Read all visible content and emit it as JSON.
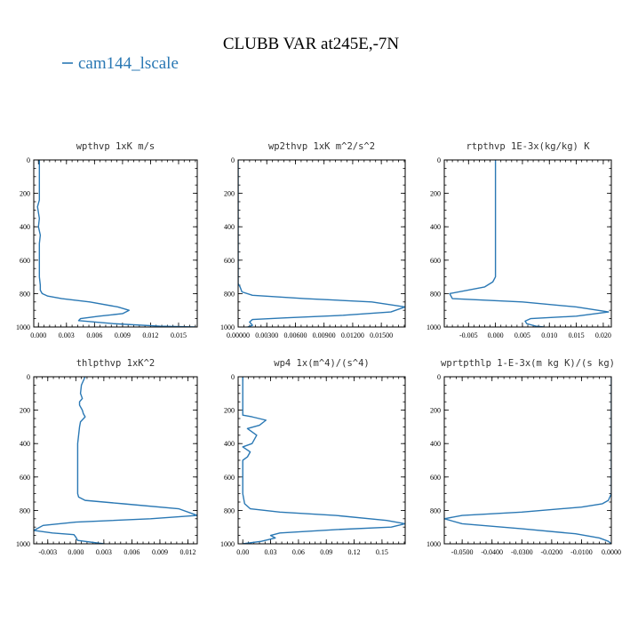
{
  "figure": {
    "title": "CLUBB VAR at245E,-7N",
    "legend": [
      {
        "label": "cam144_lscale",
        "color": "#2a78b4"
      }
    ]
  },
  "chart_data": [
    {
      "type": "line",
      "title": "wpthvp   1xK m/s",
      "series_name": "cam144_lscale",
      "color": "#2a78b4",
      "xlim": [
        -0.0005,
        0.017
      ],
      "ylim": [
        1000,
        0
      ],
      "xticks": [
        0.0,
        0.003,
        0.006,
        0.009,
        0.012,
        0.015
      ],
      "xtick_labels": [
        "0.000",
        "0.003",
        "0.006",
        "0.009",
        "0.012",
        "0.015"
      ],
      "yticks": [
        0,
        200,
        400,
        600,
        800,
        1000
      ],
      "ytick_labels": [
        "0",
        "200",
        "400",
        "600",
        "800",
        "1000"
      ],
      "x": [
        0.0001,
        0.0001,
        0.0001,
        0.0001,
        0.0,
        -0.0001,
        0.0001,
        0.0,
        0.0002,
        0.0001,
        0.0001,
        0.0001,
        0.0002,
        0.0002,
        0.0004,
        0.001,
        0.0025,
        0.0055,
        0.0085,
        0.0097,
        0.009,
        0.0065,
        0.0045,
        0.0043,
        0.008,
        0.013,
        0.0168
      ],
      "y": [
        0,
        100,
        200,
        240,
        260,
        280,
        350,
        400,
        450,
        500,
        600,
        700,
        750,
        780,
        800,
        815,
        830,
        850,
        880,
        900,
        920,
        935,
        950,
        962,
        980,
        995,
        1000
      ]
    },
    {
      "type": "line",
      "title": "wp2thvp   1xK m^2/s^2",
      "series_name": "cam144_lscale",
      "color": "#2a78b4",
      "xlim": [
        0.0,
        0.0175
      ],
      "ylim": [
        1000,
        0
      ],
      "xticks": [
        0.0,
        0.003,
        0.006,
        0.009,
        0.012,
        0.015
      ],
      "xtick_labels": [
        "0.00000",
        "0.00300",
        "0.00600",
        "0.00900",
        "0.01200",
        "0.01500"
      ],
      "yticks": [
        0,
        200,
        400,
        600,
        800,
        1000
      ],
      "ytick_labels": [
        "0",
        "200",
        "400",
        "600",
        "800",
        "1000"
      ],
      "x": [
        0.0,
        0.0,
        0.0,
        0.0,
        0.0,
        0.0,
        0.0002,
        0.0004,
        0.0015,
        0.007,
        0.014,
        0.0175,
        0.016,
        0.011,
        0.005,
        0.0015,
        0.0012,
        0.0015,
        0.001
      ],
      "y": [
        0,
        200,
        400,
        600,
        700,
        740,
        760,
        790,
        810,
        830,
        850,
        880,
        910,
        930,
        945,
        955,
        970,
        990,
        1000
      ]
    },
    {
      "type": "line",
      "title": "rtpthvp   1E-3x(kg/kg) K",
      "series_name": "cam144_lscale",
      "color": "#2a78b4",
      "xlim": [
        -0.0095,
        0.0215
      ],
      "ylim": [
        1000,
        0
      ],
      "xticks": [
        -0.005,
        0.0,
        0.005,
        0.01,
        0.015,
        0.02
      ],
      "xtick_labels": [
        "-0.005",
        "0.000",
        "0.005",
        "0.010",
        "0.015",
        "0.020"
      ],
      "yticks": [
        0,
        200,
        400,
        600,
        800,
        1000
      ],
      "ytick_labels": [
        "0",
        "200",
        "400",
        "600",
        "800",
        "1000"
      ],
      "x": [
        0.0,
        0.0,
        0.0,
        0.0,
        0.0,
        -0.0005,
        -0.002,
        -0.0085,
        -0.008,
        0.005,
        0.015,
        0.021,
        0.015,
        0.0065,
        0.0055,
        0.0058,
        0.0075,
        0.009
      ],
      "y": [
        0,
        200,
        400,
        600,
        700,
        730,
        760,
        800,
        830,
        850,
        880,
        910,
        935,
        950,
        965,
        980,
        995,
        1000
      ]
    },
    {
      "type": "line",
      "title": "thlpthvp   1xK^2",
      "series_name": "cam144_lscale",
      "color": "#2a78b4",
      "xlim": [
        -0.0045,
        0.013
      ],
      "ylim": [
        1000,
        0
      ],
      "xticks": [
        -0.003,
        0.0,
        0.003,
        0.006,
        0.009,
        0.012
      ],
      "xtick_labels": [
        "-0.003",
        "0.000",
        "0.003",
        "0.006",
        "0.009",
        "0.012"
      ],
      "yticks": [
        0,
        200,
        400,
        600,
        800,
        1000
      ],
      "ytick_labels": [
        "0",
        "200",
        "400",
        "600",
        "800",
        "1000"
      ],
      "x": [
        0.001,
        0.0006,
        0.0005,
        0.0007,
        0.0004,
        0.0004,
        0.0007,
        0.0008,
        0.001,
        0.0005,
        0.0004,
        0.0003,
        0.0002,
        0.0002,
        0.0002,
        0.0002,
        0.0003,
        0.001,
        0.005,
        0.011,
        0.013,
        0.008,
        0.0,
        -0.0035,
        -0.0045,
        -0.0025,
        -0.0002,
        0.0,
        0.0002,
        0.003
      ],
      "y": [
        0,
        50,
        100,
        130,
        150,
        170,
        200,
        220,
        240,
        270,
        300,
        350,
        400,
        500,
        600,
        700,
        720,
        740,
        760,
        790,
        830,
        850,
        870,
        890,
        920,
        935,
        945,
        960,
        980,
        1000
      ]
    },
    {
      "type": "line",
      "title": "wp4   1x(m^4)/(s^4)",
      "series_name": "cam144_lscale",
      "color": "#2a78b4",
      "xlim": [
        -0.005,
        0.175
      ],
      "ylim": [
        1000,
        0
      ],
      "xticks": [
        0.0,
        0.03,
        0.06,
        0.09,
        0.12,
        0.15
      ],
      "xtick_labels": [
        "0.00",
        "0.03",
        "0.06",
        "0.09",
        "0.12",
        "0.15"
      ],
      "yticks": [
        0,
        200,
        400,
        600,
        800,
        1000
      ],
      "ytick_labels": [
        "0",
        "200",
        "400",
        "600",
        "800",
        "1000"
      ],
      "x": [
        0.0,
        0.0,
        0.0,
        0.0,
        0.01,
        0.025,
        0.018,
        0.005,
        0.015,
        0.01,
        0.0,
        0.008,
        0.005,
        0.0,
        0.0,
        0.0,
        0.002,
        0.008,
        0.04,
        0.1,
        0.155,
        0.175,
        0.16,
        0.1,
        0.04,
        0.03,
        0.035,
        0.02,
        0.0
      ],
      "y": [
        0,
        100,
        200,
        230,
        240,
        260,
        290,
        310,
        350,
        400,
        420,
        450,
        480,
        500,
        600,
        700,
        760,
        790,
        810,
        830,
        860,
        880,
        900,
        915,
        935,
        950,
        965,
        985,
        1000
      ]
    },
    {
      "type": "line",
      "title": "wprtpthlp   1-E-3x(m kg K)/(s kg)",
      "series_name": "cam144_lscale",
      "color": "#2a78b4",
      "xlim": [
        -0.056,
        0.0
      ],
      "ylim": [
        1000,
        0
      ],
      "xticks": [
        -0.05,
        -0.04,
        -0.03,
        -0.02,
        -0.01,
        0.0
      ],
      "xtick_labels": [
        "-0.0500",
        "-0.0400",
        "-0.0300",
        "-0.0200",
        "-0.0100",
        "0.0000"
      ],
      "yticks": [
        0,
        200,
        400,
        600,
        800,
        1000
      ],
      "ytick_labels": [
        "0",
        "200",
        "400",
        "600",
        "800",
        "1000"
      ],
      "x": [
        0.0,
        0.0,
        0.0,
        0.0,
        0.0,
        -0.0005,
        -0.001,
        -0.003,
        -0.01,
        -0.03,
        -0.05,
        -0.056,
        -0.05,
        -0.03,
        -0.012,
        -0.004,
        -0.001,
        0.0
      ],
      "y": [
        0,
        200,
        400,
        600,
        700,
        720,
        740,
        760,
        780,
        810,
        830,
        850,
        880,
        910,
        940,
        965,
        985,
        1000
      ]
    }
  ]
}
